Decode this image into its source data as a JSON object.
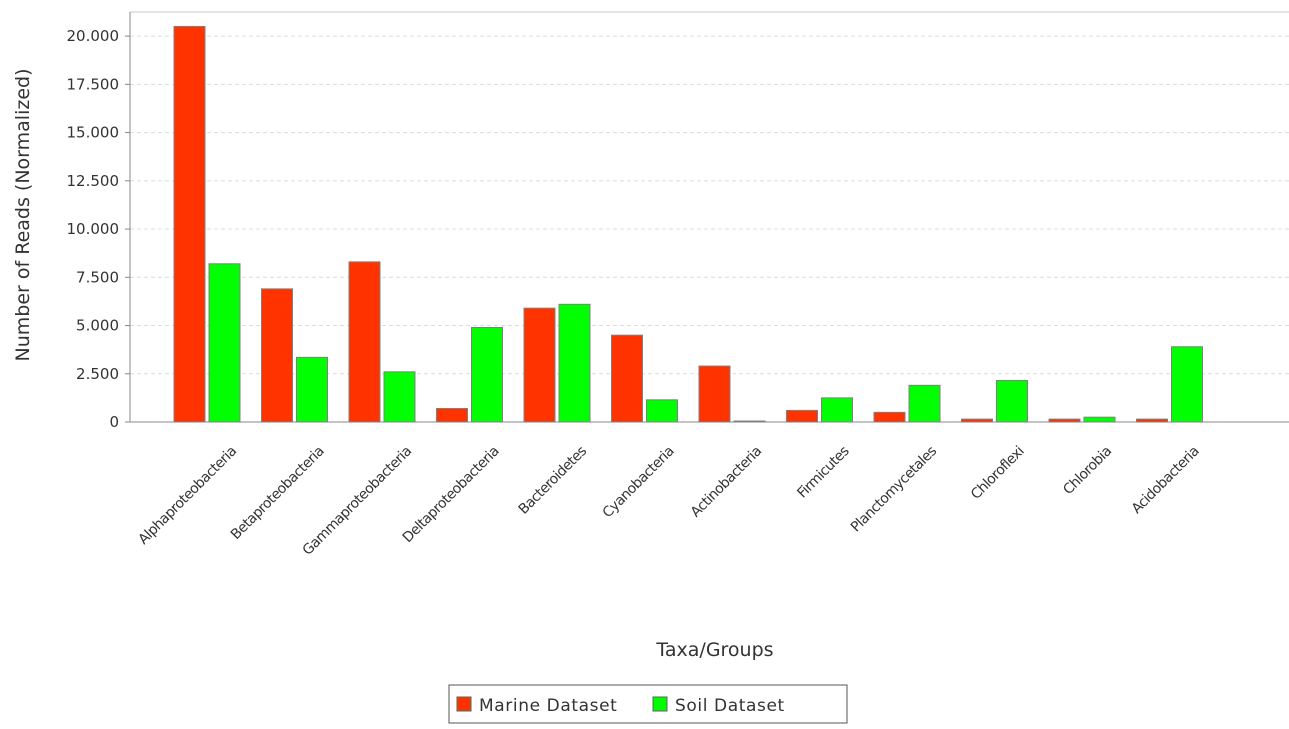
{
  "chart_data": {
    "type": "bar",
    "title": "",
    "xlabel": "Taxa/Groups",
    "ylabel": "Number of Reads (Normalized)",
    "ylim": [
      0,
      21250
    ],
    "yticks": [
      0,
      2500,
      5000,
      7500,
      10000,
      12500,
      15000,
      17500,
      20000
    ],
    "ytick_labels": [
      "0",
      "2.500",
      "5.000",
      "7.500",
      "10.000",
      "12.500",
      "15.000",
      "17.500",
      "20.000"
    ],
    "grid": true,
    "legend_position": "bottom-center",
    "categories": [
      "Alphaproteobacteria",
      "Betaproteobacteria",
      "Gammaproteobacteria",
      "Deltaproteobacteria",
      "Bacteroidetes",
      "Cyanobacteria",
      "Actinobacteria",
      "Firmicutes",
      "Planctomycetales",
      "Chloroflexi",
      "Chlorobia",
      "Acidobacteria"
    ],
    "series": [
      {
        "name": "Marine Dataset",
        "color": "#ff3300",
        "values": [
          20500,
          6900,
          8300,
          700,
          5900,
          4500,
          2900,
          600,
          500,
          150,
          150,
          150
        ]
      },
      {
        "name": "Soil Dataset",
        "color": "#00ff00",
        "values": [
          8200,
          3350,
          2600,
          4900,
          6100,
          1150,
          50,
          1250,
          1900,
          2150,
          250,
          3900
        ]
      }
    ]
  }
}
